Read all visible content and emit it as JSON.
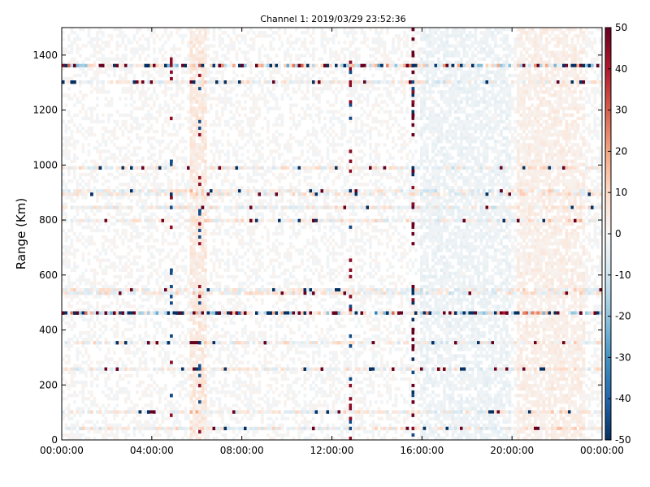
{
  "chart_data": {
    "type": "heatmap",
    "title": "Channel 1: 2019/03/29 23:52:36",
    "xlabel": "",
    "ylabel": "Range (Km)",
    "x_ticks": [
      "00:00:00",
      "04:00:00",
      "08:00:00",
      "12:00:00",
      "16:00:00",
      "20:00:00",
      "00:00:00"
    ],
    "x_range_hours": [
      0,
      24
    ],
    "y_ticks": [
      0,
      200,
      400,
      600,
      800,
      1000,
      1200,
      1400
    ],
    "ylim": [
      0,
      1500
    ],
    "colorbar": {
      "ticks": [
        -50,
        -40,
        -30,
        -20,
        -10,
        0,
        10,
        20,
        30,
        40,
        50
      ],
      "range": [
        -50,
        50
      ],
      "colormap": "RdBu_r",
      "colors": [
        "#053061",
        "#2166ac",
        "#4393c3",
        "#92c5de",
        "#d1e5f0",
        "#f7f7f7",
        "#fddbc7",
        "#f4a582",
        "#d6604d",
        "#b2182b",
        "#67001f"
      ]
    },
    "features": {
      "horizontal_bands_km": [
        40,
        100,
        260,
        350,
        460,
        540,
        800,
        850,
        900,
        990,
        1300,
        1365
      ],
      "strong_bands_km": [
        460,
        1365
      ],
      "vertical_bands_hours": [
        4.9,
        6.1,
        12.8,
        15.6
      ],
      "noisy_column_hour": 15.6
    }
  }
}
